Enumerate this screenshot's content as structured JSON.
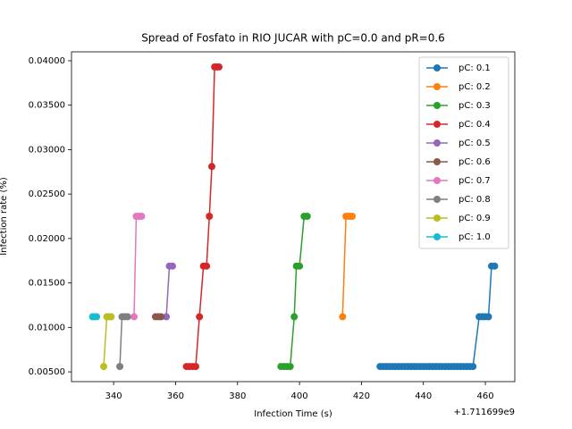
{
  "chart_data": {
    "type": "line",
    "title": "Spread of Fosfato in RIO JUCAR with pC=0.0 and pR=0.6",
    "x_label": "Infection Time (s)",
    "y_label": "Infection rate (%)",
    "x_offset_label": "+1.711699e9",
    "xlim": [
      326.4,
      469.5
    ],
    "xticks": [
      340,
      360,
      380,
      400,
      420,
      440,
      460
    ],
    "ylim": [
      0.0039,
      0.041
    ],
    "yticks": [
      {
        "value": 0.005,
        "label": "0.00500"
      },
      {
        "value": 0.01,
        "label": "0.01000"
      },
      {
        "value": 0.015,
        "label": "0.01500"
      },
      {
        "value": 0.02,
        "label": "0.02000"
      },
      {
        "value": 0.025,
        "label": "0.02500"
      },
      {
        "value": 0.03,
        "label": "0.03000"
      },
      {
        "value": 0.035,
        "label": "0.03500"
      },
      {
        "value": 0.04,
        "label": "0.04000"
      }
    ],
    "legend": "upper right",
    "series": [
      {
        "name": "pC: 0.1",
        "color": "#1f77b4",
        "x": [
          426,
          427,
          428,
          429,
          430,
          431,
          432,
          433,
          434,
          435,
          436,
          437,
          438,
          439,
          440,
          441,
          442,
          443,
          444,
          445,
          446,
          447,
          448,
          449,
          450,
          451,
          452,
          453,
          454,
          455,
          456,
          458,
          459,
          460,
          461,
          462,
          463
        ],
        "values": [
          0.0056,
          0.0056,
          0.0056,
          0.0056,
          0.0056,
          0.0056,
          0.0056,
          0.0056,
          0.0056,
          0.0056,
          0.0056,
          0.0056,
          0.0056,
          0.0056,
          0.0056,
          0.0056,
          0.0056,
          0.0056,
          0.0056,
          0.0056,
          0.0056,
          0.0056,
          0.0056,
          0.0056,
          0.0056,
          0.0056,
          0.0056,
          0.0056,
          0.0056,
          0.0056,
          0.0056,
          0.0112,
          0.0112,
          0.0112,
          0.0112,
          0.0169,
          0.0169
        ]
      },
      {
        "name": "pC: 0.2",
        "color": "#ff7f0e",
        "x": [
          413.9,
          415,
          416,
          417
        ],
        "values": [
          0.0112,
          0.0225,
          0.0225,
          0.0225
        ]
      },
      {
        "name": "pC: 0.3",
        "color": "#2ca02c",
        "x": [
          394,
          395,
          396,
          397,
          398.3,
          399,
          400,
          401.5,
          402.5
        ],
        "values": [
          0.0056,
          0.0056,
          0.0056,
          0.0056,
          0.0112,
          0.0169,
          0.0169,
          0.0225,
          0.0225
        ]
      },
      {
        "name": "pC: 0.4",
        "color": "#d62728",
        "x": [
          363.5,
          364.5,
          365.5,
          366.5,
          367.7,
          369,
          370,
          370.9,
          371.7,
          372.6,
          373.3,
          374
        ],
        "values": [
          0.0056,
          0.0056,
          0.0056,
          0.0056,
          0.0112,
          0.0169,
          0.0169,
          0.0225,
          0.0281,
          0.0393,
          0.0393,
          0.0393
        ]
      },
      {
        "name": "pC: 0.5",
        "color": "#9467bd",
        "x": [
          357,
          358,
          359
        ],
        "values": [
          0.0112,
          0.0169,
          0.0169
        ]
      },
      {
        "name": "pC: 0.6",
        "color": "#8c564b",
        "x": [
          353.5,
          354.5,
          355.3
        ],
        "values": [
          0.0112,
          0.0112,
          0.0112
        ]
      },
      {
        "name": "pC: 0.7",
        "color": "#e377c2",
        "x": [
          346.6,
          347.3,
          348.2,
          349
        ],
        "values": [
          0.0112,
          0.0225,
          0.0225,
          0.0225
        ]
      },
      {
        "name": "pC: 0.8",
        "color": "#7f7f7f",
        "x": [
          342,
          342.7,
          343.6,
          344.5
        ],
        "values": [
          0.0056,
          0.0112,
          0.0112,
          0.0112
        ]
      },
      {
        "name": "pC: 0.9",
        "color": "#bcbd22",
        "x": [
          336.8,
          337.8,
          338.5,
          339.2
        ],
        "values": [
          0.0056,
          0.0112,
          0.0112,
          0.0112
        ]
      },
      {
        "name": "pC: 1.0",
        "color": "#17becf",
        "x": [
          333.2,
          333.8,
          334.5
        ],
        "values": [
          0.0112,
          0.0112,
          0.0112
        ]
      }
    ]
  }
}
